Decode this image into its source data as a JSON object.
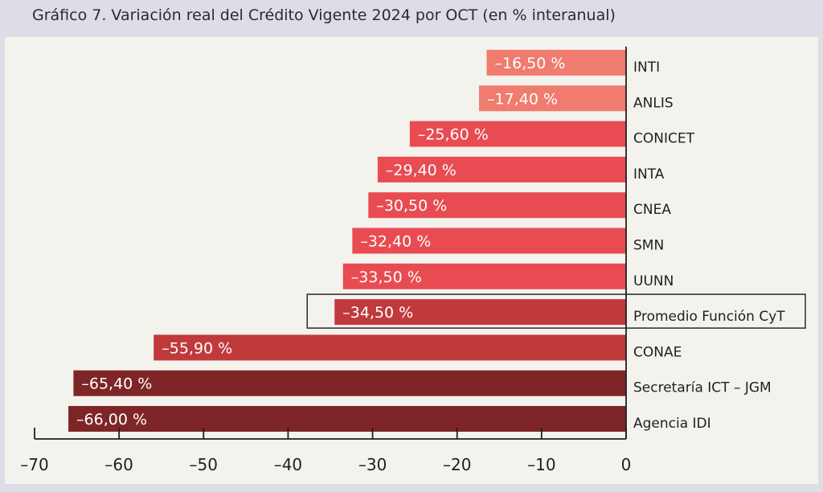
{
  "title": "Gráfico 7. Variación real del Crédito Vigente 2024 por OCT (en % interanual)",
  "chart_data": {
    "type": "bar",
    "orientation": "horizontal",
    "categories": [
      "INTI",
      "ANLIS",
      "CONICET",
      "INTA",
      "CNEA",
      "SMN",
      "UUNN",
      "Promedio Función CyT",
      "CONAE",
      "Secretaría ICT – JGM",
      "Agencia IDI"
    ],
    "values": [
      -16.5,
      -17.4,
      -25.6,
      -29.4,
      -30.5,
      -32.4,
      -33.5,
      -34.5,
      -55.9,
      -65.4,
      -66.0
    ],
    "data_labels": [
      "–16,50 %",
      "–17,40 %",
      "–25,60 %",
      "–29,40 %",
      "–30,50 %",
      "–32,40 %",
      "–33,50 %",
      "–34,50 %",
      "–55,90 %",
      "–65,40 %",
      "–66,00 %"
    ],
    "colors": [
      "#f07b6f",
      "#f07b6f",
      "#e84c52",
      "#e84c52",
      "#e84c52",
      "#e84c52",
      "#e84c52",
      "#c03a3c",
      "#c03a3c",
      "#7e2627",
      "#7e2627"
    ],
    "highlighted_category": "Promedio Función CyT",
    "xlim": [
      -70,
      0
    ],
    "ticks": [
      -70,
      -60,
      -50,
      -40,
      -30,
      -20,
      -10,
      0
    ],
    "tick_labels": [
      "–70",
      "–60",
      "–50",
      "–40",
      "–30",
      "–20",
      "–10",
      "0"
    ],
    "grid": false,
    "legend": "none",
    "xlabel": "",
    "ylabel": ""
  }
}
